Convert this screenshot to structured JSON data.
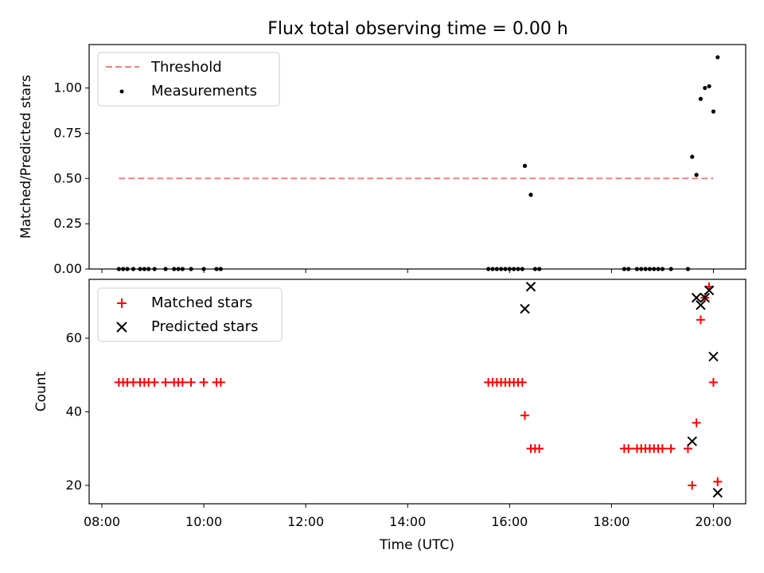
{
  "chart_data": [
    {
      "type": "scatter",
      "title": "Flux total observing time = 0.00 h",
      "ylabel": "Matched/Predicted stars",
      "xlabel": "",
      "xlim": [
        "07:45",
        "20:38"
      ],
      "ylim": [
        0,
        1.24
      ],
      "yticks": [
        "0.00",
        "0.25",
        "0.50",
        "0.75",
        "1.00"
      ],
      "legend": {
        "placement": "top-left",
        "entries": [
          "Threshold",
          "Measurements"
        ]
      },
      "threshold": {
        "name": "Threshold",
        "y": 0.5,
        "x": [
          "08:20",
          "20:00"
        ],
        "color": "#f08080"
      },
      "series": [
        {
          "name": "Measurements",
          "color": "#000000",
          "points": [
            [
              "08:20",
              0
            ],
            [
              "08:25",
              0
            ],
            [
              "08:30",
              0
            ],
            [
              "08:37",
              0
            ],
            [
              "08:45",
              0
            ],
            [
              "08:50",
              0
            ],
            [
              "08:55",
              0
            ],
            [
              "09:02",
              0
            ],
            [
              "09:15",
              0
            ],
            [
              "09:25",
              0
            ],
            [
              "09:30",
              0
            ],
            [
              "09:35",
              0
            ],
            [
              "09:45",
              0
            ],
            [
              "10:00",
              0
            ],
            [
              "10:15",
              0
            ],
            [
              "10:20",
              0
            ],
            [
              "15:35",
              0
            ],
            [
              "15:40",
              0
            ],
            [
              "15:45",
              0
            ],
            [
              "15:50",
              0
            ],
            [
              "15:55",
              0
            ],
            [
              "16:00",
              0
            ],
            [
              "16:05",
              0
            ],
            [
              "16:10",
              0
            ],
            [
              "16:15",
              0
            ],
            [
              "16:18",
              0.57
            ],
            [
              "16:25",
              0.41
            ],
            [
              "16:30",
              0
            ],
            [
              "16:35",
              0
            ],
            [
              "18:15",
              0
            ],
            [
              "18:20",
              0
            ],
            [
              "18:30",
              0
            ],
            [
              "18:35",
              0
            ],
            [
              "18:40",
              0
            ],
            [
              "18:45",
              0
            ],
            [
              "18:50",
              0
            ],
            [
              "18:55",
              0
            ],
            [
              "19:00",
              0
            ],
            [
              "19:10",
              0
            ],
            [
              "19:30",
              0
            ],
            [
              "19:35",
              0.62
            ],
            [
              "19:40",
              0.52
            ],
            [
              "19:45",
              0.94
            ],
            [
              "19:50",
              1.0
            ],
            [
              "19:55",
              1.01
            ],
            [
              "20:00",
              0.87
            ],
            [
              "20:05",
              1.17
            ]
          ]
        }
      ]
    },
    {
      "type": "scatter",
      "title": "",
      "xlabel": "Time (UTC)",
      "ylabel": "Count",
      "xlim": [
        "07:45",
        "20:38"
      ],
      "ylim": [
        15,
        76
      ],
      "xticks": [
        "08:00",
        "10:00",
        "12:00",
        "14:00",
        "16:00",
        "18:00",
        "20:00"
      ],
      "yticks": [
        "20",
        "40",
        "60"
      ],
      "legend": {
        "placement": "top-left",
        "entries": [
          "Matched stars",
          "Predicted stars"
        ]
      },
      "series": [
        {
          "name": "Matched stars",
          "marker": "plus",
          "color": "#ff0000",
          "points": [
            [
              "08:20",
              48
            ],
            [
              "08:25",
              48
            ],
            [
              "08:30",
              48
            ],
            [
              "08:37",
              48
            ],
            [
              "08:45",
              48
            ],
            [
              "08:50",
              48
            ],
            [
              "08:55",
              48
            ],
            [
              "09:02",
              48
            ],
            [
              "09:15",
              48
            ],
            [
              "09:25",
              48
            ],
            [
              "09:30",
              48
            ],
            [
              "09:35",
              48
            ],
            [
              "09:45",
              48
            ],
            [
              "10:00",
              48
            ],
            [
              "10:15",
              48
            ],
            [
              "10:20",
              48
            ],
            [
              "15:35",
              48
            ],
            [
              "15:40",
              48
            ],
            [
              "15:45",
              48
            ],
            [
              "15:50",
              48
            ],
            [
              "15:55",
              48
            ],
            [
              "16:00",
              48
            ],
            [
              "16:05",
              48
            ],
            [
              "16:10",
              48
            ],
            [
              "16:15",
              48
            ],
            [
              "16:18",
              39
            ],
            [
              "16:25",
              30
            ],
            [
              "16:30",
              30
            ],
            [
              "16:35",
              30
            ],
            [
              "18:15",
              30
            ],
            [
              "18:20",
              30
            ],
            [
              "18:30",
              30
            ],
            [
              "18:35",
              30
            ],
            [
              "18:40",
              30
            ],
            [
              "18:45",
              30
            ],
            [
              "18:50",
              30
            ],
            [
              "18:55",
              30
            ],
            [
              "19:00",
              30
            ],
            [
              "19:10",
              30
            ],
            [
              "19:30",
              30
            ],
            [
              "19:35",
              20
            ],
            [
              "19:40",
              37
            ],
            [
              "19:45",
              65
            ],
            [
              "19:50",
              71
            ],
            [
              "19:55",
              74
            ],
            [
              "20:00",
              48
            ],
            [
              "20:05",
              21
            ]
          ]
        },
        {
          "name": "Predicted stars",
          "marker": "x",
          "color": "#000000",
          "points": [
            [
              "16:18",
              68
            ],
            [
              "16:25",
              74
            ],
            [
              "19:35",
              32
            ],
            [
              "19:40",
              71
            ],
            [
              "19:45",
              69
            ],
            [
              "19:50",
              71
            ],
            [
              "19:55",
              73
            ],
            [
              "20:00",
              55
            ],
            [
              "20:05",
              18
            ]
          ]
        }
      ]
    }
  ]
}
